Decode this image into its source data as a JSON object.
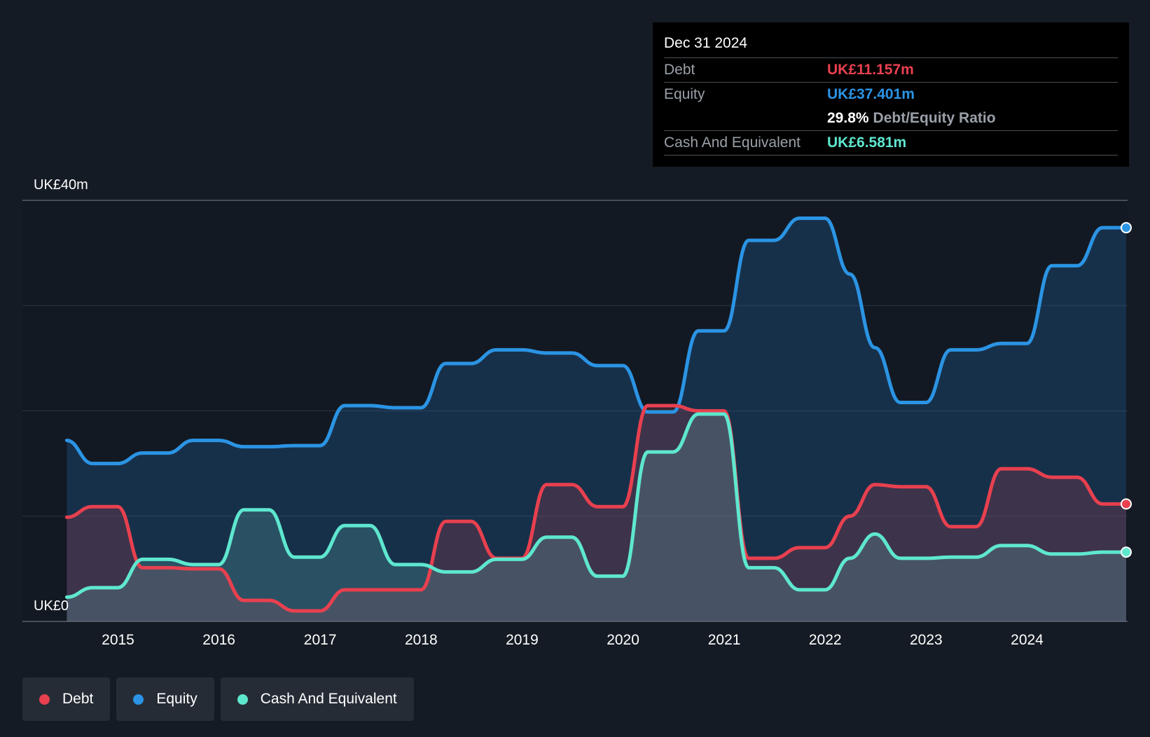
{
  "chart_data": {
    "type": "area",
    "y_axis": {
      "min": 0,
      "max": 40,
      "top_label": "UK£40m",
      "bottom_label": "UK£0"
    },
    "x_axis": {
      "ticks": [
        "2015",
        "2016",
        "2017",
        "2018",
        "2019",
        "2020",
        "2021",
        "2022",
        "2023",
        "2024"
      ]
    },
    "grid": true,
    "series": [
      {
        "name": "Equity",
        "color": "#2b94e4",
        "points": [
          [
            "2014-06-30",
            17.2
          ],
          [
            "2014-09-30",
            15.0
          ],
          [
            "2014-12-31",
            15.0
          ],
          [
            "2015-03-31",
            16.0
          ],
          [
            "2015-06-30",
            16.0
          ],
          [
            "2015-09-30",
            17.2
          ],
          [
            "2015-12-31",
            17.2
          ],
          [
            "2016-03-31",
            16.6
          ],
          [
            "2016-06-30",
            16.6
          ],
          [
            "2016-09-30",
            16.7
          ],
          [
            "2016-12-31",
            16.7
          ],
          [
            "2017-03-31",
            20.5
          ],
          [
            "2017-06-30",
            20.5
          ],
          [
            "2017-09-30",
            20.3
          ],
          [
            "2017-12-31",
            20.3
          ],
          [
            "2018-03-31",
            24.5
          ],
          [
            "2018-06-30",
            24.5
          ],
          [
            "2018-09-30",
            25.8
          ],
          [
            "2018-12-31",
            25.8
          ],
          [
            "2019-03-31",
            25.5
          ],
          [
            "2019-06-30",
            25.5
          ],
          [
            "2019-09-30",
            24.3
          ],
          [
            "2019-12-31",
            24.3
          ],
          [
            "2020-03-31",
            19.9
          ],
          [
            "2020-06-30",
            19.9
          ],
          [
            "2020-09-30",
            27.6
          ],
          [
            "2020-12-31",
            27.6
          ],
          [
            "2021-03-31",
            36.2
          ],
          [
            "2021-06-30",
            36.2
          ],
          [
            "2021-09-30",
            38.3
          ],
          [
            "2021-12-31",
            38.3
          ],
          [
            "2022-03-31",
            33.0
          ],
          [
            "2022-06-30",
            26.0
          ],
          [
            "2022-09-30",
            20.8
          ],
          [
            "2022-12-31",
            20.8
          ],
          [
            "2023-03-31",
            25.8
          ],
          [
            "2023-06-30",
            25.8
          ],
          [
            "2023-09-30",
            26.4
          ],
          [
            "2023-12-31",
            26.4
          ],
          [
            "2024-03-31",
            33.8
          ],
          [
            "2024-06-30",
            33.8
          ],
          [
            "2024-09-30",
            37.401
          ],
          [
            "2024-12-31",
            37.401
          ]
        ]
      },
      {
        "name": "Debt",
        "color": "#e8404f",
        "points": [
          [
            "2014-06-30",
            9.9
          ],
          [
            "2014-09-30",
            10.9
          ],
          [
            "2014-12-31",
            10.9
          ],
          [
            "2015-03-31",
            5.1
          ],
          [
            "2015-06-30",
            5.1
          ],
          [
            "2015-09-30",
            5.0
          ],
          [
            "2015-12-31",
            5.0
          ],
          [
            "2016-03-31",
            2.0
          ],
          [
            "2016-06-30",
            2.0
          ],
          [
            "2016-09-30",
            1.0
          ],
          [
            "2016-12-31",
            1.0
          ],
          [
            "2017-03-31",
            3.0
          ],
          [
            "2017-06-30",
            3.0
          ],
          [
            "2017-09-30",
            3.0
          ],
          [
            "2017-12-31",
            3.0
          ],
          [
            "2018-03-31",
            9.5
          ],
          [
            "2018-06-30",
            9.5
          ],
          [
            "2018-09-30",
            6.0
          ],
          [
            "2018-12-31",
            6.0
          ],
          [
            "2019-03-31",
            13.0
          ],
          [
            "2019-06-30",
            13.0
          ],
          [
            "2019-09-30",
            10.9
          ],
          [
            "2019-12-31",
            10.9
          ],
          [
            "2020-03-31",
            20.5
          ],
          [
            "2020-06-30",
            20.5
          ],
          [
            "2020-09-30",
            20.0
          ],
          [
            "2020-12-31",
            20.0
          ],
          [
            "2021-03-31",
            6.0
          ],
          [
            "2021-06-30",
            6.0
          ],
          [
            "2021-09-30",
            7.0
          ],
          [
            "2021-12-31",
            7.0
          ],
          [
            "2022-03-31",
            10.0
          ],
          [
            "2022-06-30",
            13.0
          ],
          [
            "2022-09-30",
            12.8
          ],
          [
            "2022-12-31",
            12.8
          ],
          [
            "2023-03-31",
            9.0
          ],
          [
            "2023-06-30",
            9.0
          ],
          [
            "2023-09-30",
            14.5
          ],
          [
            "2023-12-31",
            14.5
          ],
          [
            "2024-03-31",
            13.7
          ],
          [
            "2024-06-30",
            13.7
          ],
          [
            "2024-09-30",
            11.157
          ],
          [
            "2024-12-31",
            11.157
          ]
        ]
      },
      {
        "name": "Cash And Equivalent",
        "color": "#5ee7cf",
        "points": [
          [
            "2014-06-30",
            2.3
          ],
          [
            "2014-09-30",
            3.2
          ],
          [
            "2014-12-31",
            3.2
          ],
          [
            "2015-03-31",
            5.9
          ],
          [
            "2015-06-30",
            5.9
          ],
          [
            "2015-09-30",
            5.4
          ],
          [
            "2015-12-31",
            5.4
          ],
          [
            "2016-03-31",
            10.6
          ],
          [
            "2016-06-30",
            10.6
          ],
          [
            "2016-09-30",
            6.1
          ],
          [
            "2016-12-31",
            6.1
          ],
          [
            "2017-03-31",
            9.1
          ],
          [
            "2017-06-30",
            9.1
          ],
          [
            "2017-09-30",
            5.4
          ],
          [
            "2017-12-31",
            5.4
          ],
          [
            "2018-03-31",
            4.7
          ],
          [
            "2018-06-30",
            4.7
          ],
          [
            "2018-09-30",
            5.9
          ],
          [
            "2018-12-31",
            5.9
          ],
          [
            "2019-03-31",
            8.0
          ],
          [
            "2019-06-30",
            8.0
          ],
          [
            "2019-09-30",
            4.3
          ],
          [
            "2019-12-31",
            4.3
          ],
          [
            "2020-03-31",
            16.1
          ],
          [
            "2020-06-30",
            16.1
          ],
          [
            "2020-09-30",
            19.7
          ],
          [
            "2020-12-31",
            19.7
          ],
          [
            "2021-03-31",
            5.1
          ],
          [
            "2021-06-30",
            5.1
          ],
          [
            "2021-09-30",
            3.0
          ],
          [
            "2021-12-31",
            3.0
          ],
          [
            "2022-03-31",
            6.0
          ],
          [
            "2022-06-30",
            8.3
          ],
          [
            "2022-09-30",
            6.0
          ],
          [
            "2022-12-31",
            6.0
          ],
          [
            "2023-03-31",
            6.1
          ],
          [
            "2023-06-30",
            6.1
          ],
          [
            "2023-09-30",
            7.2
          ],
          [
            "2023-12-31",
            7.2
          ],
          [
            "2024-03-31",
            6.4
          ],
          [
            "2024-06-30",
            6.4
          ],
          [
            "2024-09-30",
            6.581
          ],
          [
            "2024-12-31",
            6.581
          ]
        ]
      }
    ]
  },
  "tooltip": {
    "date": "Dec 31 2024",
    "debt_label": "Debt",
    "debt_value": "UK£11.157m",
    "equity_label": "Equity",
    "equity_value": "UK£37.401m",
    "ratio_value": "29.8%",
    "ratio_label": "Debt/Equity Ratio",
    "cash_label": "Cash And Equivalent",
    "cash_value": "UK£6.581m"
  },
  "legend": {
    "debt": "Debt",
    "equity": "Equity",
    "cash": "Cash And Equivalent"
  }
}
